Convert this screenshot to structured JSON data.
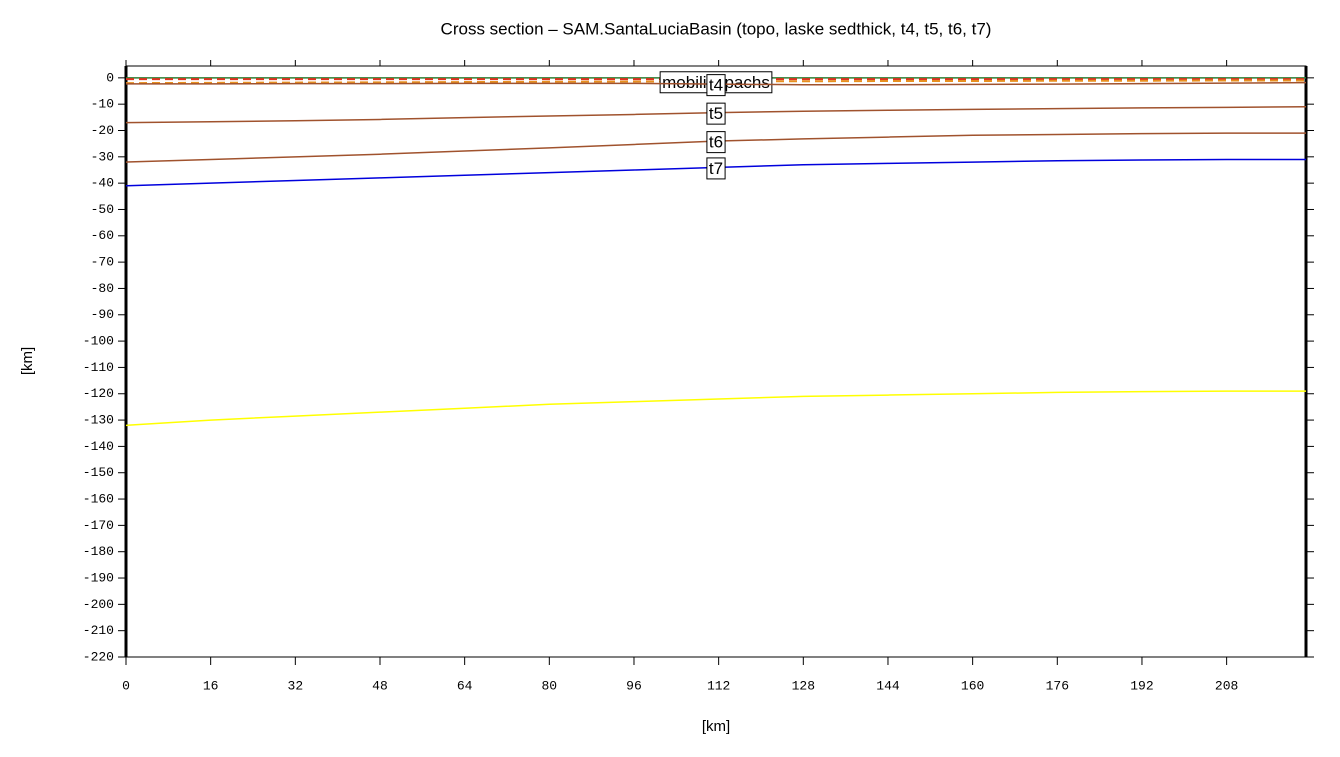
{
  "chart_data": {
    "type": "line",
    "title": "Cross section – SAM.SantaLuciaBasin (topo, laske sedthick, t4, t5, t6, t7)",
    "x_label": "[km]",
    "y_label": "[km]",
    "x": [
      0,
      16,
      32,
      48,
      64,
      80,
      96,
      112,
      128,
      144,
      160,
      176,
      192,
      208,
      223
    ],
    "xlim": [
      0,
      223
    ],
    "ylim": [
      -220,
      4.5
    ],
    "xticks": [
      0,
      16,
      32,
      48,
      64,
      80,
      96,
      112,
      128,
      144,
      160,
      176,
      192,
      208
    ],
    "yticks": [
      0,
      -10,
      -20,
      -30,
      -40,
      -50,
      -60,
      -70,
      -80,
      -90,
      -100,
      -110,
      -120,
      -130,
      -140,
      -150,
      -160,
      -170,
      -180,
      -190,
      -200,
      -210,
      -220
    ],
    "series": [
      {
        "color": "#2e7d32",
        "dashed": false,
        "values": [
          0,
          0,
          0,
          0,
          0,
          0,
          0,
          0,
          0,
          0,
          0,
          0,
          0,
          0,
          0
        ]
      },
      {
        "color": "#e03020",
        "dashed": true,
        "values": [
          -0.5,
          -0.5,
          -0.5,
          -0.5,
          -0.5,
          -0.5,
          -0.5,
          -0.5,
          -0.5,
          -0.5,
          -0.5,
          -0.5,
          -0.5,
          -0.5,
          -0.5
        ]
      },
      {
        "name": "mobilisepachs",
        "color": "#e89020",
        "dashed": true,
        "values": [
          -2,
          -1.9,
          -1.8,
          -1.7,
          -1.6,
          -1.5,
          -1.4,
          -1.3,
          -1.3,
          -1.2,
          -1.2,
          -1.1,
          -1.1,
          -1,
          -1
        ]
      },
      {
        "name": "t4",
        "color": "#a0522d",
        "dashed": false,
        "values": [
          -2.3,
          -2.3,
          -2.2,
          -2.2,
          -2.1,
          -2.1,
          -2.1,
          -2.4,
          -2.6,
          -2.6,
          -2.5,
          -2.4,
          -2.2,
          -2,
          -1.8
        ]
      },
      {
        "name": "t5",
        "color": "#a0522d",
        "dashed": false,
        "values": [
          -17,
          -16.7,
          -16.3,
          -15.8,
          -15.1,
          -14.5,
          -13.9,
          -13.2,
          -12.7,
          -12.3,
          -12,
          -11.7,
          -11.4,
          -11.2,
          -11
        ]
      },
      {
        "name": "t6",
        "color": "#a0522d",
        "dashed": false,
        "values": [
          -32,
          -31,
          -30,
          -29,
          -27.8,
          -26.6,
          -25.3,
          -24,
          -23.2,
          -22.5,
          -21.8,
          -21.5,
          -21.2,
          -21,
          -21
        ]
      },
      {
        "name": "t7",
        "color": "#0000dd",
        "dashed": false,
        "values": [
          -41,
          -40,
          -39,
          -38,
          -37,
          -36,
          -35,
          -34,
          -33,
          -32.5,
          -32,
          -31.5,
          -31.2,
          -31,
          -31
        ]
      },
      {
        "color": "#ffff00",
        "dashed": false,
        "values": [
          -132,
          -130,
          -128.5,
          -127,
          -125.5,
          -124,
          -123,
          -122,
          -121,
          -120.5,
          -120,
          -119.5,
          -119.2,
          -119,
          -119
        ]
      }
    ]
  }
}
